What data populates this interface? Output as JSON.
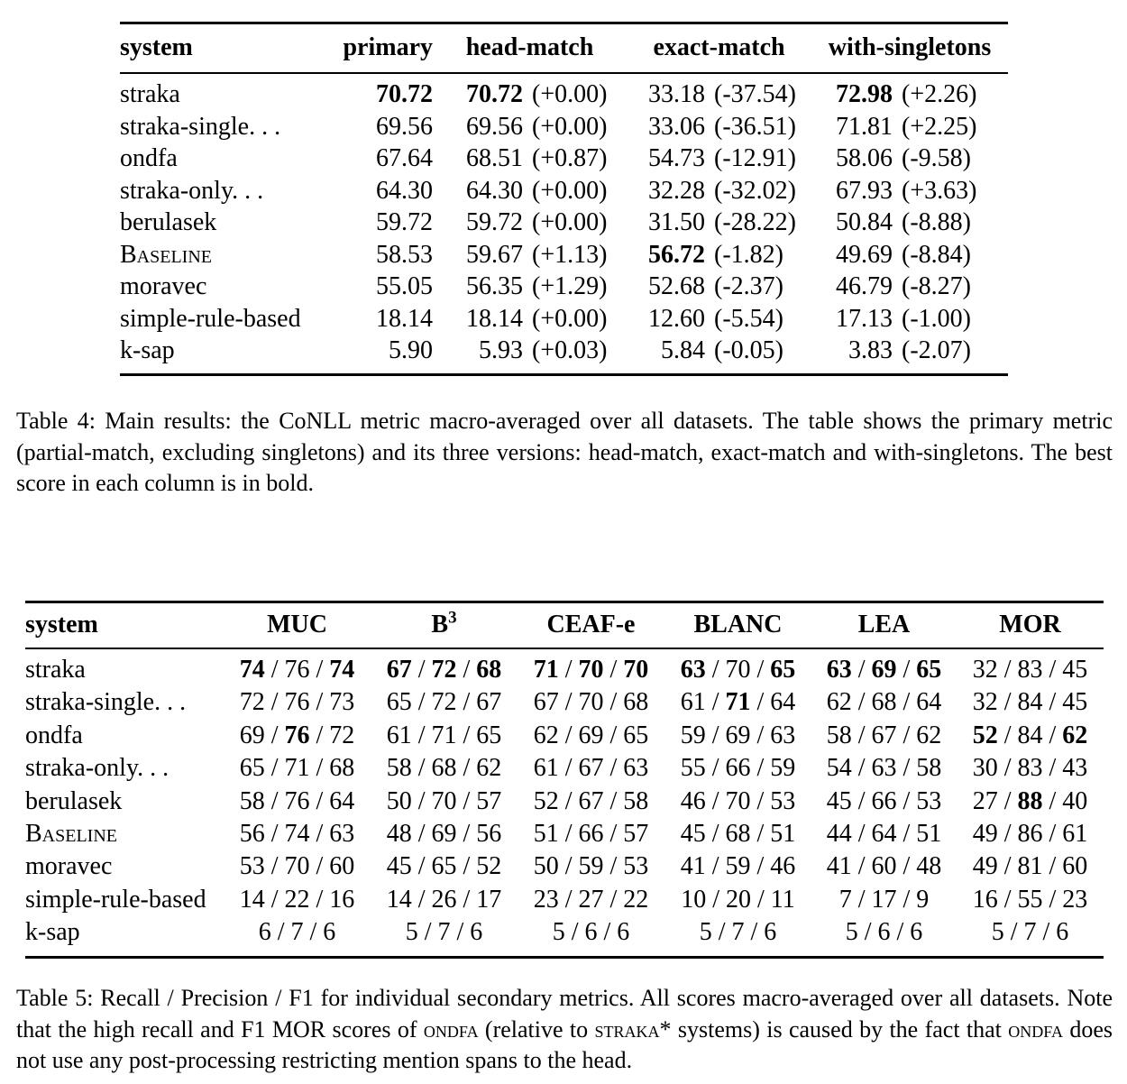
{
  "colors": {
    "text": "#000000",
    "background": "#ffffff"
  },
  "table4": {
    "headers": {
      "system": "system",
      "primary": "primary",
      "head_match": "head-match",
      "exact_match": "exact-match",
      "with_singletons": "with-singletons"
    },
    "rows": [
      {
        "system": "straka",
        "smallcaps": false,
        "primary": {
          "v": "70.72",
          "b": true
        },
        "cells": [
          {
            "v": "70.72",
            "b": true,
            "d": "(+0.00)"
          },
          {
            "v": "33.18",
            "b": false,
            "d": "(-37.54)"
          },
          {
            "v": "72.98",
            "b": true,
            "d": "(+2.26)"
          }
        ]
      },
      {
        "system": "straka-single. . .",
        "smallcaps": false,
        "primary": {
          "v": "69.56",
          "b": false
        },
        "cells": [
          {
            "v": "69.56",
            "b": false,
            "d": "(+0.00)"
          },
          {
            "v": "33.06",
            "b": false,
            "d": "(-36.51)"
          },
          {
            "v": "71.81",
            "b": false,
            "d": "(+2.25)"
          }
        ]
      },
      {
        "system": "ondfa",
        "smallcaps": false,
        "primary": {
          "v": "67.64",
          "b": false
        },
        "cells": [
          {
            "v": "68.51",
            "b": false,
            "d": "(+0.87)"
          },
          {
            "v": "54.73",
            "b": false,
            "d": "(-12.91)"
          },
          {
            "v": "58.06",
            "b": false,
            "d": "(-9.58)"
          }
        ]
      },
      {
        "system": "straka-only. . .",
        "smallcaps": false,
        "primary": {
          "v": "64.30",
          "b": false
        },
        "cells": [
          {
            "v": "64.30",
            "b": false,
            "d": "(+0.00)"
          },
          {
            "v": "32.28",
            "b": false,
            "d": "(-32.02)"
          },
          {
            "v": "67.93",
            "b": false,
            "d": "(+3.63)"
          }
        ]
      },
      {
        "system": "berulasek",
        "smallcaps": false,
        "primary": {
          "v": "59.72",
          "b": false
        },
        "cells": [
          {
            "v": "59.72",
            "b": false,
            "d": "(+0.00)"
          },
          {
            "v": "31.50",
            "b": false,
            "d": "(-28.22)"
          },
          {
            "v": "50.84",
            "b": false,
            "d": "(-8.88)"
          }
        ]
      },
      {
        "system": "Baseline",
        "smallcaps": true,
        "primary": {
          "v": "58.53",
          "b": false
        },
        "cells": [
          {
            "v": "59.67",
            "b": false,
            "d": "(+1.13)"
          },
          {
            "v": "56.72",
            "b": true,
            "d": "(-1.82)"
          },
          {
            "v": "49.69",
            "b": false,
            "d": "(-8.84)"
          }
        ]
      },
      {
        "system": "moravec",
        "smallcaps": false,
        "primary": {
          "v": "55.05",
          "b": false
        },
        "cells": [
          {
            "v": "56.35",
            "b": false,
            "d": "(+1.29)"
          },
          {
            "v": "52.68",
            "b": false,
            "d": "(-2.37)"
          },
          {
            "v": "46.79",
            "b": false,
            "d": "(-8.27)"
          }
        ]
      },
      {
        "system": "simple-rule-based",
        "smallcaps": false,
        "primary": {
          "v": "18.14",
          "b": false
        },
        "cells": [
          {
            "v": "18.14",
            "b": false,
            "d": "(+0.00)"
          },
          {
            "v": "12.60",
            "b": false,
            "d": "(-5.54)"
          },
          {
            "v": "17.13",
            "b": false,
            "d": "(-1.00)"
          }
        ]
      },
      {
        "system": "k-sap",
        "smallcaps": false,
        "primary": {
          "v": "5.90",
          "b": false
        },
        "cells": [
          {
            "v": "5.93",
            "b": false,
            "d": "(+0.03)"
          },
          {
            "v": "5.84",
            "b": false,
            "d": "(-0.05)"
          },
          {
            "v": "3.83",
            "b": false,
            "d": "(-2.07)"
          }
        ]
      }
    ],
    "caption": "Table 4: Main results: the CoNLL metric macro-averaged over all datasets. The table shows the primary metric (partial-match, excluding singletons) and its three versions: head-match, exact-match and with-singletons. The best score in each column is in bold."
  },
  "table5": {
    "sep": " / ",
    "headers": {
      "system": "system",
      "muc": "MUC",
      "b3_base": "B",
      "b3_sup": "3",
      "ceafe": "CEAF-e",
      "blanc": "BLANC",
      "lea": "LEA",
      "mor": "MOR"
    },
    "rows": [
      {
        "system": "straka",
        "smallcaps": false,
        "metrics": [
          {
            "r": "74",
            "rb": true,
            "p": "76",
            "pb": false,
            "f": "74",
            "fb": true
          },
          {
            "r": "67",
            "rb": true,
            "p": "72",
            "pb": true,
            "f": "68",
            "fb": true
          },
          {
            "r": "71",
            "rb": true,
            "p": "70",
            "pb": true,
            "f": "70",
            "fb": true
          },
          {
            "r": "63",
            "rb": true,
            "p": "70",
            "pb": false,
            "f": "65",
            "fb": true
          },
          {
            "r": "63",
            "rb": true,
            "p": "69",
            "pb": true,
            "f": "65",
            "fb": true
          },
          {
            "r": "32",
            "rb": false,
            "p": "83",
            "pb": false,
            "f": "45",
            "fb": false
          }
        ]
      },
      {
        "system": "straka-single. . .",
        "smallcaps": false,
        "metrics": [
          {
            "r": "72",
            "rb": false,
            "p": "76",
            "pb": false,
            "f": "73",
            "fb": false
          },
          {
            "r": "65",
            "rb": false,
            "p": "72",
            "pb": false,
            "f": "67",
            "fb": false
          },
          {
            "r": "67",
            "rb": false,
            "p": "70",
            "pb": false,
            "f": "68",
            "fb": false
          },
          {
            "r": "61",
            "rb": false,
            "p": "71",
            "pb": true,
            "f": "64",
            "fb": false
          },
          {
            "r": "62",
            "rb": false,
            "p": "68",
            "pb": false,
            "f": "64",
            "fb": false
          },
          {
            "r": "32",
            "rb": false,
            "p": "84",
            "pb": false,
            "f": "45",
            "fb": false
          }
        ]
      },
      {
        "system": "ondfa",
        "smallcaps": false,
        "metrics": [
          {
            "r": "69",
            "rb": false,
            "p": "76",
            "pb": true,
            "f": "72",
            "fb": false
          },
          {
            "r": "61",
            "rb": false,
            "p": "71",
            "pb": false,
            "f": "65",
            "fb": false
          },
          {
            "r": "62",
            "rb": false,
            "p": "69",
            "pb": false,
            "f": "65",
            "fb": false
          },
          {
            "r": "59",
            "rb": false,
            "p": "69",
            "pb": false,
            "f": "63",
            "fb": false
          },
          {
            "r": "58",
            "rb": false,
            "p": "67",
            "pb": false,
            "f": "62",
            "fb": false
          },
          {
            "r": "52",
            "rb": true,
            "p": "84",
            "pb": false,
            "f": "62",
            "fb": true
          }
        ]
      },
      {
        "system": "straka-only. . .",
        "smallcaps": false,
        "metrics": [
          {
            "r": "65",
            "rb": false,
            "p": "71",
            "pb": false,
            "f": "68",
            "fb": false
          },
          {
            "r": "58",
            "rb": false,
            "p": "68",
            "pb": false,
            "f": "62",
            "fb": false
          },
          {
            "r": "61",
            "rb": false,
            "p": "67",
            "pb": false,
            "f": "63",
            "fb": false
          },
          {
            "r": "55",
            "rb": false,
            "p": "66",
            "pb": false,
            "f": "59",
            "fb": false
          },
          {
            "r": "54",
            "rb": false,
            "p": "63",
            "pb": false,
            "f": "58",
            "fb": false
          },
          {
            "r": "30",
            "rb": false,
            "p": "83",
            "pb": false,
            "f": "43",
            "fb": false
          }
        ]
      },
      {
        "system": "berulasek",
        "smallcaps": false,
        "metrics": [
          {
            "r": "58",
            "rb": false,
            "p": "76",
            "pb": false,
            "f": "64",
            "fb": false
          },
          {
            "r": "50",
            "rb": false,
            "p": "70",
            "pb": false,
            "f": "57",
            "fb": false
          },
          {
            "r": "52",
            "rb": false,
            "p": "67",
            "pb": false,
            "f": "58",
            "fb": false
          },
          {
            "r": "46",
            "rb": false,
            "p": "70",
            "pb": false,
            "f": "53",
            "fb": false
          },
          {
            "r": "45",
            "rb": false,
            "p": "66",
            "pb": false,
            "f": "53",
            "fb": false
          },
          {
            "r": "27",
            "rb": false,
            "p": "88",
            "pb": true,
            "f": "40",
            "fb": false
          }
        ]
      },
      {
        "system": "Baseline",
        "smallcaps": true,
        "metrics": [
          {
            "r": "56",
            "rb": false,
            "p": "74",
            "pb": false,
            "f": "63",
            "fb": false
          },
          {
            "r": "48",
            "rb": false,
            "p": "69",
            "pb": false,
            "f": "56",
            "fb": false
          },
          {
            "r": "51",
            "rb": false,
            "p": "66",
            "pb": false,
            "f": "57",
            "fb": false
          },
          {
            "r": "45",
            "rb": false,
            "p": "68",
            "pb": false,
            "f": "51",
            "fb": false
          },
          {
            "r": "44",
            "rb": false,
            "p": "64",
            "pb": false,
            "f": "51",
            "fb": false
          },
          {
            "r": "49",
            "rb": false,
            "p": "86",
            "pb": false,
            "f": "61",
            "fb": false
          }
        ]
      },
      {
        "system": "moravec",
        "smallcaps": false,
        "metrics": [
          {
            "r": "53",
            "rb": false,
            "p": "70",
            "pb": false,
            "f": "60",
            "fb": false
          },
          {
            "r": "45",
            "rb": false,
            "p": "65",
            "pb": false,
            "f": "52",
            "fb": false
          },
          {
            "r": "50",
            "rb": false,
            "p": "59",
            "pb": false,
            "f": "53",
            "fb": false
          },
          {
            "r": "41",
            "rb": false,
            "p": "59",
            "pb": false,
            "f": "46",
            "fb": false
          },
          {
            "r": "41",
            "rb": false,
            "p": "60",
            "pb": false,
            "f": "48",
            "fb": false
          },
          {
            "r": "49",
            "rb": false,
            "p": "81",
            "pb": false,
            "f": "60",
            "fb": false
          }
        ]
      },
      {
        "system": "simple-rule-based",
        "smallcaps": false,
        "metrics": [
          {
            "r": "14",
            "rb": false,
            "p": "22",
            "pb": false,
            "f": "16",
            "fb": false
          },
          {
            "r": "14",
            "rb": false,
            "p": "26",
            "pb": false,
            "f": "17",
            "fb": false
          },
          {
            "r": "23",
            "rb": false,
            "p": "27",
            "pb": false,
            "f": "22",
            "fb": false
          },
          {
            "r": "10",
            "rb": false,
            "p": "20",
            "pb": false,
            "f": "11",
            "fb": false
          },
          {
            "r": "7",
            "rb": false,
            "p": "17",
            "pb": false,
            "f": "9",
            "fb": false
          },
          {
            "r": "16",
            "rb": false,
            "p": "55",
            "pb": false,
            "f": "23",
            "fb": false
          }
        ]
      },
      {
        "system": "k-sap",
        "smallcaps": false,
        "metrics": [
          {
            "r": "6",
            "rb": false,
            "p": "7",
            "pb": false,
            "f": "6",
            "fb": false
          },
          {
            "r": "5",
            "rb": false,
            "p": "7",
            "pb": false,
            "f": "6",
            "fb": false
          },
          {
            "r": "5",
            "rb": false,
            "p": "6",
            "pb": false,
            "f": "6",
            "fb": false
          },
          {
            "r": "5",
            "rb": false,
            "p": "7",
            "pb": false,
            "f": "6",
            "fb": false
          },
          {
            "r": "5",
            "rb": false,
            "p": "6",
            "pb": false,
            "f": "6",
            "fb": false
          },
          {
            "r": "5",
            "rb": false,
            "p": "7",
            "pb": false,
            "f": "6",
            "fb": false
          }
        ]
      }
    ],
    "caption_parts": [
      {
        "t": "Table 5: Recall / Precision / F1 for individual secondary metrics. All scores macro-averaged over all datasets. Note that the high recall and F1 MOR scores of ",
        "sc": false
      },
      {
        "t": "ondfa",
        "sc": true
      },
      {
        "t": " (relative to ",
        "sc": false
      },
      {
        "t": "straka*",
        "sc": true
      },
      {
        "t": " systems) is caused by the fact that ",
        "sc": false
      },
      {
        "t": "ondfa",
        "sc": true
      },
      {
        "t": " does not use any post-processing restricting mention spans to the head.",
        "sc": false
      }
    ]
  }
}
